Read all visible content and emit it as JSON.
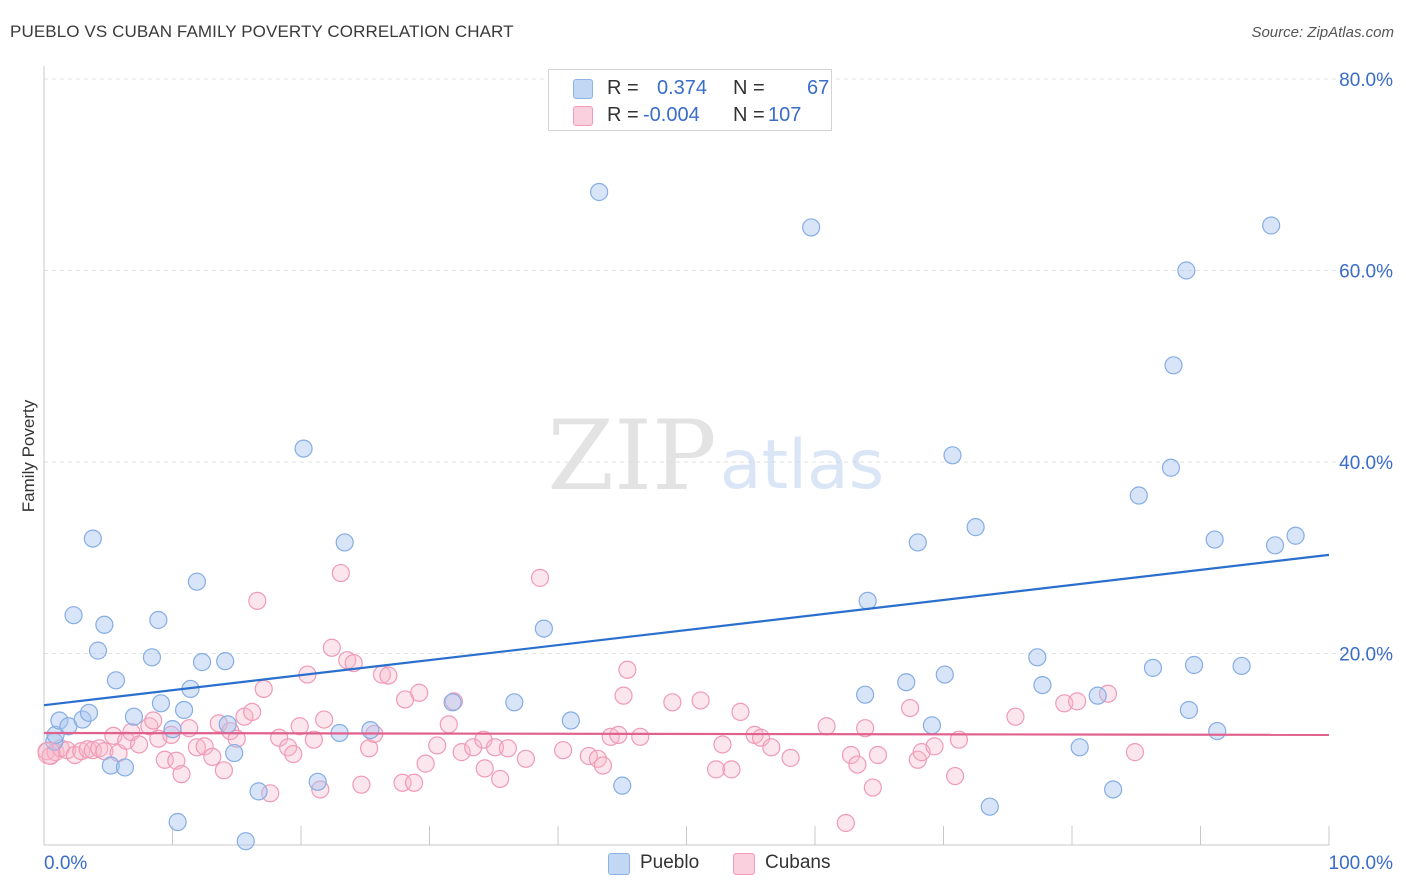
{
  "header": {
    "title": "PUEBLO VS CUBAN FAMILY POVERTY CORRELATION CHART",
    "source": "Source: ZipAtlas.com"
  },
  "watermark": {
    "zip": "ZIP",
    "atlas": "atlas"
  },
  "stats": {
    "rows": [
      {
        "r_label": "R =",
        "r_value": "0.374",
        "n_label": "N =",
        "n_value": "67",
        "color": "#a8c6f0"
      },
      {
        "r_label": "R =",
        "r_value": "-0.004",
        "n_label": "N =",
        "n_value": "107",
        "color": "#f7b8cc"
      }
    ]
  },
  "legend": {
    "items": [
      {
        "label": "Pueblo",
        "color": "#a8c6f0"
      },
      {
        "label": "Cubans",
        "color": "#f7b8cc"
      }
    ]
  },
  "chart_data": {
    "type": "scatter",
    "ylabel": "Family Poverty",
    "xlim": [
      0,
      100
    ],
    "ylim": [
      0,
      80
    ],
    "x_tick_labels": [
      "0.0%",
      "100.0%"
    ],
    "y_tick_labels": [
      "20.0%",
      "40.0%",
      "60.0%",
      "80.0%"
    ],
    "y_ticks": [
      20,
      40,
      60,
      80
    ],
    "grid": true,
    "legend_position": "bottom",
    "series": [
      {
        "name": "Pueblo",
        "color": "#a8c6f0",
        "line_color": "#2b6fce",
        "trend": [
          [
            0,
            14.6
          ],
          [
            100,
            30.3
          ]
        ],
        "points": [
          [
            0.8,
            10.8
          ],
          [
            0.9,
            11.5
          ],
          [
            1.2,
            13.0
          ],
          [
            1.9,
            12.4
          ],
          [
            2.3,
            24.0
          ],
          [
            3.0,
            13.1
          ],
          [
            3.5,
            13.8
          ],
          [
            3.8,
            32.0
          ],
          [
            4.2,
            20.3
          ],
          [
            4.7,
            23.0
          ],
          [
            5.2,
            8.3
          ],
          [
            5.6,
            17.2
          ],
          [
            6.3,
            8.1
          ],
          [
            7.0,
            13.4
          ],
          [
            8.4,
            19.6
          ],
          [
            8.9,
            23.5
          ],
          [
            9.1,
            14.8
          ],
          [
            10.0,
            12.1
          ],
          [
            10.4,
            2.4
          ],
          [
            10.9,
            14.1
          ],
          [
            11.4,
            16.3
          ],
          [
            11.9,
            27.5
          ],
          [
            12.3,
            19.1
          ],
          [
            14.1,
            19.2
          ],
          [
            14.3,
            12.6
          ],
          [
            14.8,
            9.6
          ],
          [
            15.7,
            0.4
          ],
          [
            16.7,
            5.6
          ],
          [
            20.2,
            41.4
          ],
          [
            21.3,
            6.6
          ],
          [
            23.0,
            11.7
          ],
          [
            23.4,
            31.6
          ],
          [
            25.4,
            12.0
          ],
          [
            31.8,
            14.9
          ],
          [
            36.6,
            14.9
          ],
          [
            38.9,
            22.6
          ],
          [
            41.0,
            13.0
          ],
          [
            43.2,
            68.2
          ],
          [
            45.0,
            6.2
          ],
          [
            59.7,
            64.5
          ],
          [
            64.1,
            25.5
          ],
          [
            63.9,
            15.7
          ],
          [
            67.1,
            17.0
          ],
          [
            68.0,
            31.6
          ],
          [
            69.1,
            12.5
          ],
          [
            70.1,
            17.8
          ],
          [
            70.7,
            40.7
          ],
          [
            72.5,
            33.2
          ],
          [
            73.6,
            4.0
          ],
          [
            77.3,
            19.6
          ],
          [
            77.7,
            16.7
          ],
          [
            80.6,
            10.2
          ],
          [
            82.0,
            15.6
          ],
          [
            83.2,
            5.8
          ],
          [
            85.2,
            36.5
          ],
          [
            86.3,
            18.5
          ],
          [
            87.7,
            39.4
          ],
          [
            88.9,
            60.0
          ],
          [
            89.1,
            14.1
          ],
          [
            89.5,
            18.8
          ],
          [
            87.9,
            50.1
          ],
          [
            91.1,
            31.9
          ],
          [
            91.3,
            11.9
          ],
          [
            93.2,
            18.7
          ],
          [
            95.5,
            64.7
          ],
          [
            95.8,
            31.3
          ],
          [
            97.4,
            32.3
          ]
        ]
      },
      {
        "name": "Cubans",
        "color": "#f7b8cc",
        "line_color": "#e0608e",
        "trend": [
          [
            0,
            11.7
          ],
          [
            100,
            11.5
          ]
        ],
        "points": [
          [
            0.2,
            9.8
          ],
          [
            0.5,
            9.3
          ],
          [
            0.9,
            9.7
          ],
          [
            1.3,
            10.1
          ],
          [
            1.8,
            9.9
          ],
          [
            2.4,
            9.4
          ],
          [
            2.9,
            9.8
          ],
          [
            3.4,
            10.0
          ],
          [
            3.8,
            9.9
          ],
          [
            4.3,
            10.1
          ],
          [
            4.7,
            9.8
          ],
          [
            5.4,
            11.4
          ],
          [
            5.8,
            9.6
          ],
          [
            6.4,
            10.9
          ],
          [
            6.8,
            11.8
          ],
          [
            7.4,
            10.5
          ],
          [
            8.2,
            12.4
          ],
          [
            8.5,
            13.0
          ],
          [
            8.9,
            11.1
          ],
          [
            9.4,
            8.9
          ],
          [
            9.9,
            11.5
          ],
          [
            10.3,
            8.8
          ],
          [
            10.7,
            7.4
          ],
          [
            11.3,
            12.2
          ],
          [
            11.9,
            10.2
          ],
          [
            12.5,
            10.3
          ],
          [
            13.1,
            9.2
          ],
          [
            13.6,
            12.7
          ],
          [
            14.0,
            7.8
          ],
          [
            14.5,
            11.9
          ],
          [
            15.0,
            11.1
          ],
          [
            15.6,
            13.4
          ],
          [
            16.2,
            13.9
          ],
          [
            16.6,
            25.5
          ],
          [
            17.1,
            16.3
          ],
          [
            17.6,
            5.4
          ],
          [
            18.3,
            11.2
          ],
          [
            19.0,
            10.2
          ],
          [
            19.4,
            9.5
          ],
          [
            19.9,
            12.4
          ],
          [
            20.5,
            17.8
          ],
          [
            21.0,
            11.0
          ],
          [
            21.5,
            5.8
          ],
          [
            21.8,
            13.1
          ],
          [
            22.4,
            20.6
          ],
          [
            23.1,
            28.4
          ],
          [
            23.6,
            19.3
          ],
          [
            24.1,
            19.0
          ],
          [
            24.7,
            6.3
          ],
          [
            25.3,
            10.1
          ],
          [
            25.7,
            11.6
          ],
          [
            26.3,
            17.8
          ],
          [
            26.8,
            17.7
          ],
          [
            27.9,
            6.5
          ],
          [
            28.1,
            15.2
          ],
          [
            28.8,
            6.5
          ],
          [
            29.2,
            15.9
          ],
          [
            29.7,
            8.5
          ],
          [
            30.6,
            10.4
          ],
          [
            31.5,
            12.6
          ],
          [
            31.9,
            15.0
          ],
          [
            32.5,
            9.7
          ],
          [
            33.4,
            10.2
          ],
          [
            34.2,
            11.0
          ],
          [
            34.3,
            8.0
          ],
          [
            35.1,
            10.2
          ],
          [
            35.5,
            6.9
          ],
          [
            36.1,
            10.1
          ],
          [
            37.5,
            9.0
          ],
          [
            38.6,
            27.9
          ],
          [
            40.4,
            9.9
          ],
          [
            42.4,
            9.3
          ],
          [
            43.1,
            9.0
          ],
          [
            43.5,
            8.3
          ],
          [
            44.1,
            11.3
          ],
          [
            44.7,
            11.5
          ],
          [
            45.1,
            15.6
          ],
          [
            45.4,
            18.3
          ],
          [
            46.4,
            11.3
          ],
          [
            48.9,
            14.9
          ],
          [
            51.1,
            15.1
          ],
          [
            52.3,
            7.9
          ],
          [
            52.8,
            10.5
          ],
          [
            53.5,
            7.9
          ],
          [
            54.2,
            13.9
          ],
          [
            55.3,
            11.5
          ],
          [
            55.8,
            11.2
          ],
          [
            56.6,
            10.2
          ],
          [
            58.1,
            9.1
          ],
          [
            60.9,
            12.4
          ],
          [
            62.4,
            2.3
          ],
          [
            62.8,
            9.4
          ],
          [
            63.3,
            8.4
          ],
          [
            63.9,
            12.2
          ],
          [
            64.5,
            6.0
          ],
          [
            64.9,
            9.4
          ],
          [
            67.4,
            14.3
          ],
          [
            68.0,
            8.9
          ],
          [
            68.3,
            9.7
          ],
          [
            69.3,
            10.3
          ],
          [
            70.9,
            7.2
          ],
          [
            71.2,
            11.0
          ],
          [
            75.6,
            13.4
          ],
          [
            79.4,
            14.8
          ],
          [
            80.4,
            15.0
          ],
          [
            82.8,
            15.8
          ],
          [
            84.9,
            9.7
          ]
        ]
      }
    ]
  }
}
